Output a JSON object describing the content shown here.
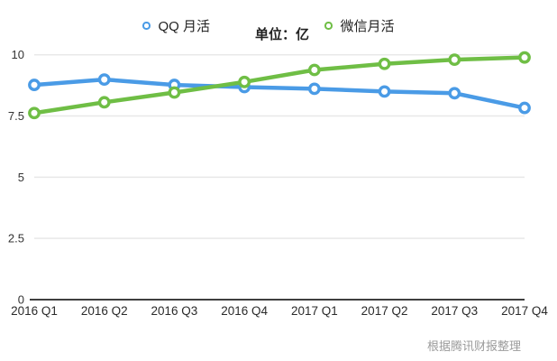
{
  "legend": {
    "items": [
      {
        "label": "QQ 月活",
        "color": "#4a9be6"
      },
      {
        "label": "微信月活",
        "color": "#6fbe45"
      }
    ],
    "unit_label": "单位：亿"
  },
  "source_note": "根据腾讯财报整理",
  "colors": {
    "qq_line": "#4a9be6",
    "wechat_line": "#6fbe45",
    "gridline": "#e8e8e8",
    "axis_line": "#3f3f3f",
    "tick_text": "#333333",
    "source_text": "#9b9b9b",
    "background": "#ffffff"
  },
  "chart_data": {
    "type": "line",
    "title": "",
    "unit": "亿",
    "categories": [
      "2016 Q1",
      "2016 Q2",
      "2016 Q3",
      "2016 Q4",
      "2017 Q1",
      "2017 Q2",
      "2017 Q3",
      "2017 Q4"
    ],
    "series": [
      {
        "name": "QQ 月活",
        "color": "#4a9be6",
        "marker": "open-circle",
        "values": [
          8.77,
          8.99,
          8.77,
          8.68,
          8.61,
          8.5,
          8.43,
          7.83
        ]
      },
      {
        "name": "微信月活",
        "color": "#6fbe45",
        "marker": "open-circle",
        "values": [
          7.62,
          8.06,
          8.46,
          8.89,
          9.38,
          9.63,
          9.8,
          9.89
        ]
      }
    ],
    "ylim": [
      0,
      10
    ],
    "y_ticks": [
      0,
      2.5,
      5,
      7.5,
      10
    ],
    "y_tick_labels": [
      "0",
      "2.5",
      "5",
      "7.5",
      "10"
    ],
    "grid": true,
    "legend_position": "top"
  }
}
